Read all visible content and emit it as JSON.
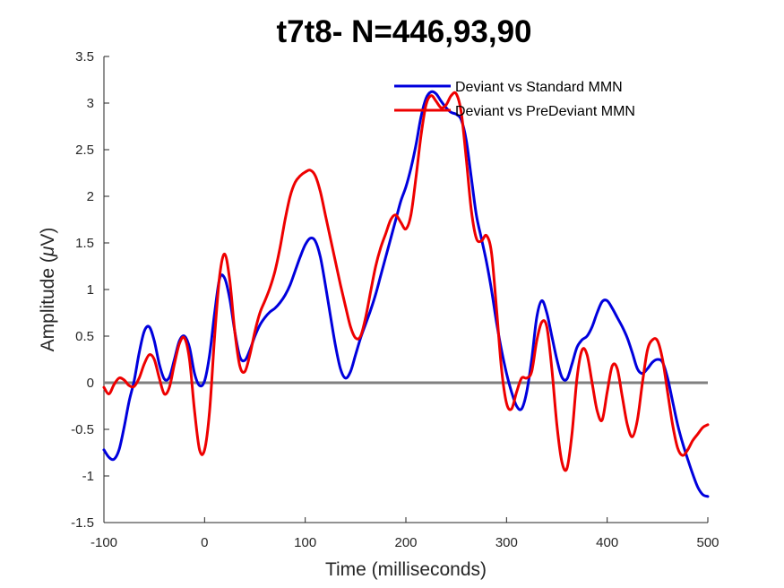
{
  "chart_data": {
    "type": "line",
    "title": "t7t8- N=446,93,90",
    "xlabel": "Time (milliseconds)",
    "ylabel_prefix": "Amplitude (",
    "ylabel_mu": "μ",
    "ylabel_suffix": "V)",
    "xlim": [
      -100,
      500
    ],
    "ylim": [
      -1.5,
      3.5
    ],
    "xticks": [
      -100,
      0,
      100,
      200,
      300,
      400,
      500
    ],
    "xtick_labels": [
      "-100",
      "0",
      "100",
      "200",
      "300",
      "400",
      "500"
    ],
    "yticks": [
      -1.5,
      -1,
      -0.5,
      0,
      0.5,
      1,
      1.5,
      2,
      2.5,
      3,
      3.5
    ],
    "ytick_labels": [
      "-1.5",
      "-1",
      "-0.5",
      "0",
      "0.5",
      "1",
      "1.5",
      "2",
      "2.5",
      "3",
      "3.5"
    ],
    "grid": false,
    "legend_position": "top-right",
    "baseline": {
      "y": 0,
      "color": "#808080"
    },
    "series": [
      {
        "name": "Deviant vs Standard MMN",
        "color": "#0000dd",
        "points": [
          [
            -100,
            -0.72
          ],
          [
            -95,
            -0.8
          ],
          [
            -90,
            -0.82
          ],
          [
            -85,
            -0.72
          ],
          [
            -80,
            -0.48
          ],
          [
            -75,
            -0.2
          ],
          [
            -70,
            0.02
          ],
          [
            -65,
            0.32
          ],
          [
            -60,
            0.55
          ],
          [
            -55,
            0.6
          ],
          [
            -50,
            0.45
          ],
          [
            -45,
            0.2
          ],
          [
            -40,
            0.04
          ],
          [
            -35,
            0.06
          ],
          [
            -30,
            0.25
          ],
          [
            -25,
            0.45
          ],
          [
            -20,
            0.5
          ],
          [
            -15,
            0.38
          ],
          [
            -10,
            0.1
          ],
          [
            -5,
            -0.03
          ],
          [
            0,
            0.02
          ],
          [
            5,
            0.3
          ],
          [
            10,
            0.75
          ],
          [
            15,
            1.12
          ],
          [
            20,
            1.12
          ],
          [
            25,
            0.9
          ],
          [
            30,
            0.55
          ],
          [
            35,
            0.28
          ],
          [
            40,
            0.24
          ],
          [
            45,
            0.35
          ],
          [
            50,
            0.5
          ],
          [
            55,
            0.62
          ],
          [
            60,
            0.7
          ],
          [
            65,
            0.76
          ],
          [
            70,
            0.8
          ],
          [
            75,
            0.86
          ],
          [
            80,
            0.94
          ],
          [
            85,
            1.05
          ],
          [
            90,
            1.2
          ],
          [
            95,
            1.35
          ],
          [
            100,
            1.48
          ],
          [
            105,
            1.55
          ],
          [
            110,
            1.52
          ],
          [
            115,
            1.35
          ],
          [
            120,
            1.05
          ],
          [
            125,
            0.72
          ],
          [
            130,
            0.4
          ],
          [
            135,
            0.15
          ],
          [
            140,
            0.05
          ],
          [
            145,
            0.12
          ],
          [
            150,
            0.3
          ],
          [
            155,
            0.48
          ],
          [
            160,
            0.63
          ],
          [
            165,
            0.78
          ],
          [
            170,
            0.95
          ],
          [
            175,
            1.15
          ],
          [
            180,
            1.35
          ],
          [
            185,
            1.55
          ],
          [
            190,
            1.75
          ],
          [
            195,
            1.95
          ],
          [
            200,
            2.1
          ],
          [
            205,
            2.3
          ],
          [
            210,
            2.55
          ],
          [
            215,
            2.85
          ],
          [
            220,
            3.05
          ],
          [
            225,
            3.12
          ],
          [
            230,
            3.1
          ],
          [
            235,
            3.02
          ],
          [
            240,
            2.95
          ],
          [
            245,
            2.9
          ],
          [
            250,
            2.88
          ],
          [
            255,
            2.82
          ],
          [
            260,
            2.6
          ],
          [
            265,
            2.2
          ],
          [
            270,
            1.8
          ],
          [
            275,
            1.55
          ],
          [
            280,
            1.3
          ],
          [
            285,
            1.0
          ],
          [
            290,
            0.65
          ],
          [
            295,
            0.35
          ],
          [
            300,
            0.1
          ],
          [
            305,
            -0.1
          ],
          [
            310,
            -0.25
          ],
          [
            315,
            -0.28
          ],
          [
            320,
            -0.1
          ],
          [
            325,
            0.25
          ],
          [
            330,
            0.7
          ],
          [
            335,
            0.88
          ],
          [
            340,
            0.75
          ],
          [
            345,
            0.5
          ],
          [
            350,
            0.25
          ],
          [
            355,
            0.06
          ],
          [
            360,
            0.04
          ],
          [
            365,
            0.2
          ],
          [
            370,
            0.38
          ],
          [
            375,
            0.46
          ],
          [
            380,
            0.5
          ],
          [
            385,
            0.6
          ],
          [
            390,
            0.75
          ],
          [
            395,
            0.87
          ],
          [
            400,
            0.88
          ],
          [
            405,
            0.8
          ],
          [
            410,
            0.7
          ],
          [
            415,
            0.6
          ],
          [
            420,
            0.48
          ],
          [
            425,
            0.32
          ],
          [
            430,
            0.15
          ],
          [
            435,
            0.1
          ],
          [
            440,
            0.15
          ],
          [
            445,
            0.22
          ],
          [
            450,
            0.25
          ],
          [
            455,
            0.22
          ],
          [
            460,
            0.05
          ],
          [
            465,
            -0.2
          ],
          [
            470,
            -0.45
          ],
          [
            475,
            -0.65
          ],
          [
            480,
            -0.82
          ],
          [
            485,
            -0.98
          ],
          [
            490,
            -1.12
          ],
          [
            495,
            -1.2
          ],
          [
            500,
            -1.22
          ]
        ]
      },
      {
        "name": "Deviant vs PreDeviant MMN",
        "color": "#ee0000",
        "points": [
          [
            -100,
            -0.05
          ],
          [
            -95,
            -0.12
          ],
          [
            -90,
            -0.02
          ],
          [
            -85,
            0.05
          ],
          [
            -80,
            0.03
          ],
          [
            -75,
            -0.03
          ],
          [
            -70,
            -0.04
          ],
          [
            -65,
            0.05
          ],
          [
            -60,
            0.2
          ],
          [
            -55,
            0.3
          ],
          [
            -50,
            0.25
          ],
          [
            -45,
            0.05
          ],
          [
            -40,
            -0.12
          ],
          [
            -35,
            -0.05
          ],
          [
            -30,
            0.2
          ],
          [
            -25,
            0.42
          ],
          [
            -20,
            0.48
          ],
          [
            -15,
            0.25
          ],
          [
            -10,
            -0.3
          ],
          [
            -5,
            -0.72
          ],
          [
            0,
            -0.72
          ],
          [
            5,
            -0.3
          ],
          [
            10,
            0.5
          ],
          [
            15,
            1.15
          ],
          [
            20,
            1.38
          ],
          [
            25,
            1.1
          ],
          [
            30,
            0.55
          ],
          [
            35,
            0.18
          ],
          [
            40,
            0.12
          ],
          [
            45,
            0.3
          ],
          [
            50,
            0.55
          ],
          [
            55,
            0.75
          ],
          [
            60,
            0.88
          ],
          [
            65,
            1.02
          ],
          [
            70,
            1.2
          ],
          [
            75,
            1.45
          ],
          [
            80,
            1.75
          ],
          [
            85,
            2.0
          ],
          [
            90,
            2.15
          ],
          [
            95,
            2.22
          ],
          [
            100,
            2.26
          ],
          [
            105,
            2.28
          ],
          [
            110,
            2.22
          ],
          [
            115,
            2.05
          ],
          [
            120,
            1.8
          ],
          [
            125,
            1.55
          ],
          [
            130,
            1.3
          ],
          [
            135,
            1.05
          ],
          [
            140,
            0.82
          ],
          [
            145,
            0.6
          ],
          [
            150,
            0.48
          ],
          [
            155,
            0.5
          ],
          [
            160,
            0.7
          ],
          [
            165,
            0.98
          ],
          [
            170,
            1.25
          ],
          [
            175,
            1.45
          ],
          [
            180,
            1.6
          ],
          [
            185,
            1.75
          ],
          [
            190,
            1.8
          ],
          [
            195,
            1.72
          ],
          [
            200,
            1.65
          ],
          [
            205,
            1.8
          ],
          [
            210,
            2.2
          ],
          [
            215,
            2.65
          ],
          [
            220,
            2.98
          ],
          [
            225,
            3.08
          ],
          [
            230,
            3.02
          ],
          [
            235,
            2.95
          ],
          [
            240,
            2.98
          ],
          [
            245,
            3.08
          ],
          [
            250,
            3.1
          ],
          [
            255,
            2.9
          ],
          [
            260,
            2.4
          ],
          [
            265,
            1.85
          ],
          [
            270,
            1.55
          ],
          [
            275,
            1.52
          ],
          [
            280,
            1.58
          ],
          [
            285,
            1.4
          ],
          [
            290,
            0.8
          ],
          [
            295,
            0.15
          ],
          [
            300,
            -0.22
          ],
          [
            305,
            -0.28
          ],
          [
            310,
            -0.1
          ],
          [
            315,
            0.05
          ],
          [
            320,
            0.05
          ],
          [
            325,
            0.12
          ],
          [
            330,
            0.45
          ],
          [
            335,
            0.65
          ],
          [
            340,
            0.6
          ],
          [
            345,
            0.15
          ],
          [
            350,
            -0.45
          ],
          [
            355,
            -0.85
          ],
          [
            360,
            -0.92
          ],
          [
            365,
            -0.55
          ],
          [
            370,
            0.05
          ],
          [
            375,
            0.35
          ],
          [
            380,
            0.3
          ],
          [
            385,
            0.0
          ],
          [
            390,
            -0.3
          ],
          [
            395,
            -0.4
          ],
          [
            400,
            -0.1
          ],
          [
            405,
            0.18
          ],
          [
            410,
            0.15
          ],
          [
            415,
            -0.15
          ],
          [
            420,
            -0.45
          ],
          [
            425,
            -0.58
          ],
          [
            430,
            -0.4
          ],
          [
            435,
            0.0
          ],
          [
            440,
            0.35
          ],
          [
            445,
            0.46
          ],
          [
            450,
            0.45
          ],
          [
            455,
            0.25
          ],
          [
            460,
            -0.1
          ],
          [
            465,
            -0.45
          ],
          [
            470,
            -0.7
          ],
          [
            475,
            -0.78
          ],
          [
            480,
            -0.72
          ],
          [
            485,
            -0.62
          ],
          [
            490,
            -0.55
          ],
          [
            495,
            -0.48
          ],
          [
            500,
            -0.45
          ]
        ]
      }
    ]
  }
}
